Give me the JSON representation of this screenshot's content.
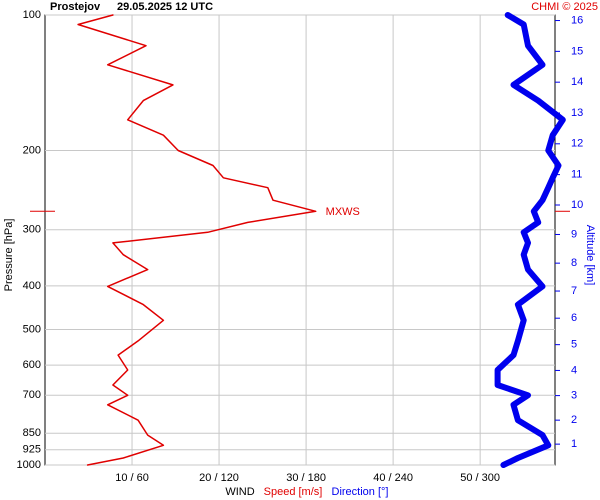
{
  "chart_data": {
    "type": "line",
    "station": "Prostejov",
    "title": "29.05.2025 12 UTC",
    "credit": "CHMI © 2025",
    "ylabel": "Pressure [hPa]",
    "y2label": "Altitude [km]",
    "xlabel": "WIND",
    "series_label_speed": "Speed [m/s]",
    "series_label_direction": "Direction [°]",
    "annotation": "MXWS",
    "y": [
      1000,
      965,
      904,
      858,
      795,
      735,
      700,
      664,
      615,
      570,
      530,
      477,
      440,
      401,
      368,
      341,
      321,
      304,
      289,
      273,
      258,
      242,
      230,
      216,
      200,
      185,
      171,
      155,
      143,
      129,
      117,
      105,
      100
    ],
    "series": [
      {
        "name": "Speed [m/s]",
        "color": "#e00000",
        "axis": "x",
        "values": [
          4.9,
          9,
          13.6,
          11.8,
          10.7,
          7.2,
          9.5,
          7.8,
          9.5,
          8.4,
          10.7,
          13.6,
          11.3,
          7.2,
          11.8,
          9,
          7.8,
          18.7,
          23.3,
          31.1,
          26.2,
          25.6,
          20.5,
          19.3,
          15.3,
          13.6,
          9.5,
          11.3,
          14.7,
          7.2,
          11.6,
          3.8,
          7.8
        ]
      },
      {
        "name": "Direction [°]",
        "color": "#0000ee",
        "axis": "x2",
        "values": [
          316,
          326,
          347,
          343,
          326,
          323,
          333,
          312,
          312,
          323,
          326,
          330,
          326,
          343,
          333,
          330,
          333,
          330,
          340,
          337,
          343,
          347,
          350,
          354,
          347,
          350,
          357,
          340,
          323,
          343,
          333,
          330,
          319
        ]
      }
    ],
    "xlim": [
      0,
      58.6
    ],
    "x2lim": [
      0,
      351.6
    ],
    "xticks": [
      {
        "value": 10,
        "label": "10 / 60"
      },
      {
        "value": 20,
        "label": "20 / 120"
      },
      {
        "value": 30,
        "label": "30 / 180"
      },
      {
        "value": 40,
        "label": "40 / 240"
      },
      {
        "value": 50,
        "label": "50 / 300"
      }
    ],
    "ylim": [
      1000,
      100
    ],
    "ylog": true,
    "yticks": [
      100,
      200,
      300,
      400,
      500,
      600,
      700,
      850,
      925,
      1000
    ],
    "y2ticks": [
      1,
      2,
      3,
      4,
      5,
      6,
      7,
      8,
      9,
      10,
      11,
      12,
      13,
      14,
      15,
      16
    ],
    "grid": true
  }
}
